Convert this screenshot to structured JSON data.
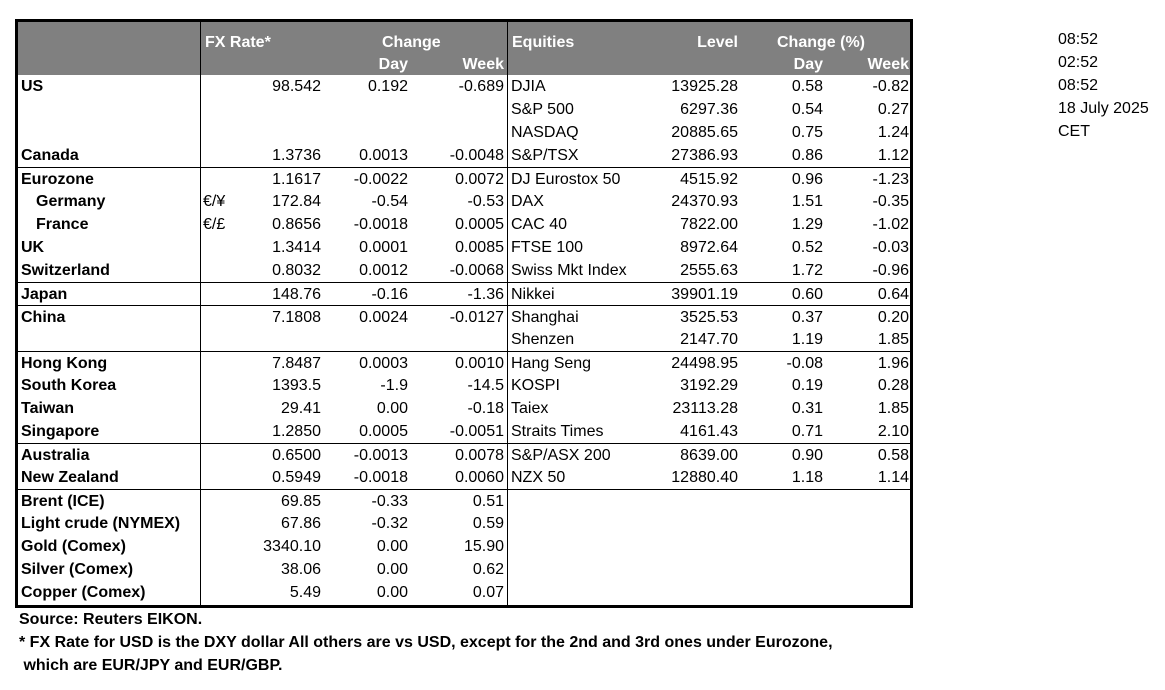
{
  "header": {
    "fx_rate": "FX Rate*",
    "change": "Change",
    "day": "Day",
    "week": "Week",
    "equities": "Equities",
    "level": "Level",
    "change_pct": "Change (%)",
    "eq_day": "Day",
    "eq_week": "Week"
  },
  "fx_rows": [
    {
      "name": "US",
      "pair": "",
      "rate": "98.542",
      "day": "0.192",
      "week": "-0.689"
    },
    {
      "name": "",
      "pair": "",
      "rate": "",
      "day": "",
      "week": ""
    },
    {
      "name": "",
      "pair": "",
      "rate": "",
      "day": "",
      "week": ""
    },
    {
      "name": "Canada",
      "pair": "",
      "rate": "1.3736",
      "day": "0.0013",
      "week": "-0.0048"
    },
    {
      "name": "Eurozone",
      "pair": "",
      "rate": "1.1617",
      "day": "-0.0022",
      "week": "0.0072"
    },
    {
      "name": "Germany",
      "pair": "€/¥",
      "rate": "172.84",
      "day": "-0.54",
      "week": "-0.53",
      "indent": true
    },
    {
      "name": "France",
      "pair": "€/£",
      "rate": "0.8656",
      "day": "-0.0018",
      "week": "0.0005",
      "indent": true
    },
    {
      "name": "UK",
      "pair": "",
      "rate": "1.3414",
      "day": "0.0001",
      "week": "0.0085"
    },
    {
      "name": "Switzerland",
      "pair": "",
      "rate": "0.8032",
      "day": "0.0012",
      "week": "-0.0068"
    },
    {
      "name": "Japan",
      "pair": "",
      "rate": "148.76",
      "day": "-0.16",
      "week": "-1.36"
    },
    {
      "name": "China",
      "pair": "",
      "rate": "7.1808",
      "day": "0.0024",
      "week": "-0.0127"
    },
    {
      "name": "",
      "pair": "",
      "rate": "",
      "day": "",
      "week": ""
    },
    {
      "name": "Hong Kong",
      "pair": "",
      "rate": "7.8487",
      "day": "0.0003",
      "week": "0.0010"
    },
    {
      "name": "South Korea",
      "pair": "",
      "rate": "1393.5",
      "day": "-1.9",
      "week": "-14.5"
    },
    {
      "name": "Taiwan",
      "pair": "",
      "rate": "29.41",
      "day": "0.00",
      "week": "-0.18"
    },
    {
      "name": "Singapore",
      "pair": "",
      "rate": "1.2850",
      "day": "0.0005",
      "week": "-0.0051"
    },
    {
      "name": "Australia",
      "pair": "",
      "rate": "0.6500",
      "day": "-0.0013",
      "week": "0.0078"
    },
    {
      "name": "New Zealand",
      "pair": "",
      "rate": "0.5949",
      "day": "-0.0018",
      "week": "0.0060"
    },
    {
      "name": "Brent (ICE)",
      "pair": "",
      "rate": "69.85",
      "day": "-0.33",
      "week": "0.51"
    },
    {
      "name": "Light crude (NYMEX)",
      "pair": "",
      "rate": "67.86",
      "day": "-0.32",
      "week": "0.59"
    },
    {
      "name": "Gold (Comex)",
      "pair": "",
      "rate": "3340.10",
      "day": "0.00",
      "week": "15.90"
    },
    {
      "name": "Silver (Comex)",
      "pair": "",
      "rate": "38.06",
      "day": "0.00",
      "week": "0.62"
    },
    {
      "name": "Copper (Comex)",
      "pair": "",
      "rate": "5.49",
      "day": "0.00",
      "week": "0.07"
    }
  ],
  "equity_rows": [
    {
      "name": "DJIA",
      "level": "13925.28",
      "day": "0.58",
      "week": "-0.82"
    },
    {
      "name": "S&P 500",
      "level": "6297.36",
      "day": "0.54",
      "week": "0.27"
    },
    {
      "name": "NASDAQ",
      "level": "20885.65",
      "day": "0.75",
      "week": "1.24"
    },
    {
      "name": "S&P/TSX",
      "level": "27386.93",
      "day": "0.86",
      "week": "1.12"
    },
    {
      "name": "DJ Eurostox 50",
      "level": "4515.92",
      "day": "0.96",
      "week": "-1.23"
    },
    {
      "name": "DAX",
      "level": "24370.93",
      "day": "1.51",
      "week": "-0.35"
    },
    {
      "name": "CAC 40",
      "level": "7822.00",
      "day": "1.29",
      "week": "-1.02"
    },
    {
      "name": "FTSE 100",
      "level": "8972.64",
      "day": "0.52",
      "week": "-0.03"
    },
    {
      "name": "Swiss Mkt Index",
      "level": "2555.63",
      "day": "1.72",
      "week": "-0.96"
    },
    {
      "name": "Nikkei",
      "level": "39901.19",
      "day": "0.60",
      "week": "0.64"
    },
    {
      "name": "Shanghai",
      "level": "3525.53",
      "day": "0.37",
      "week": "0.20"
    },
    {
      "name": "Shenzen",
      "level": "2147.70",
      "day": "1.19",
      "week": "1.85"
    },
    {
      "name": "Hang Seng",
      "level": "24498.95",
      "day": "-0.08",
      "week": "1.96"
    },
    {
      "name": "KOSPI",
      "level": "3192.29",
      "day": "0.19",
      "week": "0.28"
    },
    {
      "name": "Taiex",
      "level": "23113.28",
      "day": "0.31",
      "week": "1.85"
    },
    {
      "name": "Straits Times",
      "level": "4161.43",
      "day": "0.71",
      "week": "2.10"
    },
    {
      "name": "S&P/ASX  200",
      "level": "8639.00",
      "day": "0.90",
      "week": "0.58"
    },
    {
      "name": "NZX 50",
      "level": "12880.40",
      "day": "1.18",
      "week": "1.14"
    }
  ],
  "side_times": [
    "08:52",
    "02:52",
    "08:52",
    "18 July 2025",
    "CET"
  ],
  "footer": {
    "source": "Source:  Reuters EIKON.",
    "note1": "* FX Rate for USD is the DXY dollar  All others are vs USD, except for the 2nd and 3rd ones under Eurozone,",
    "note2": " which are EUR/JPY and EUR/GBP."
  },
  "colors": {
    "header_bg": "#808080",
    "header_text": "#ffffff"
  }
}
